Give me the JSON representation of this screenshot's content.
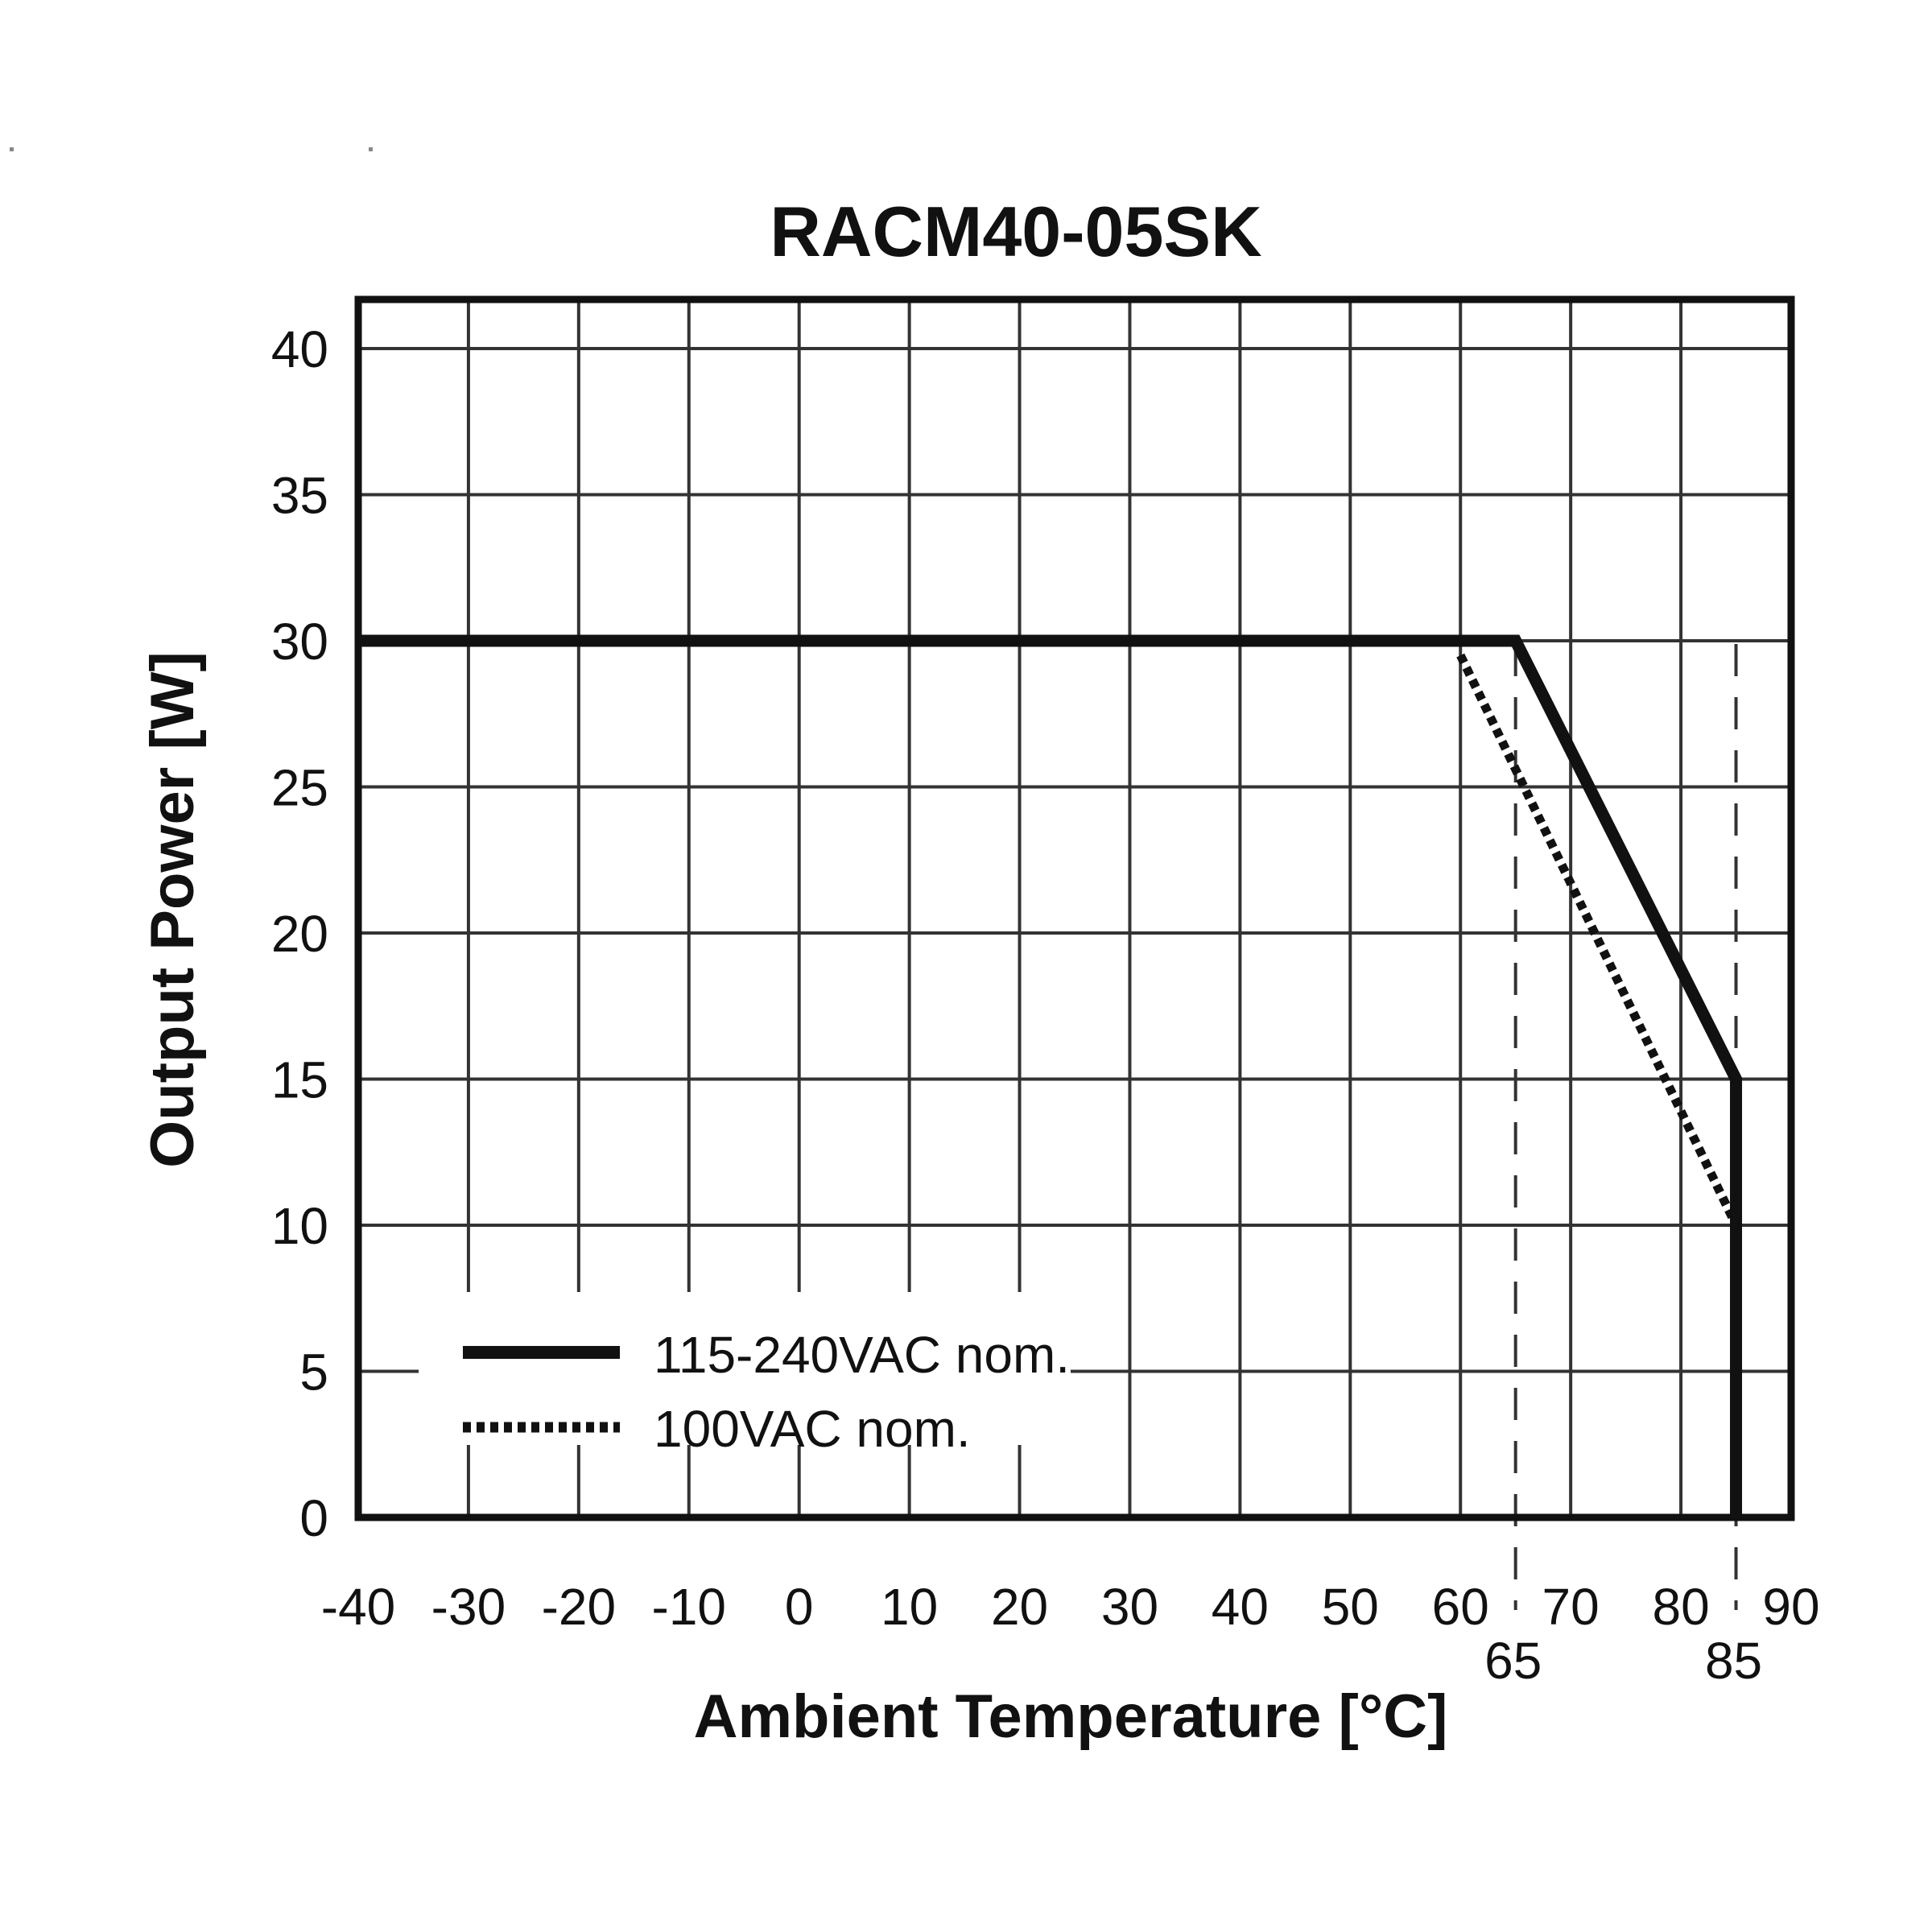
{
  "chart_data": {
    "type": "line",
    "title": "RACM40-05SK",
    "xlabel": "Ambient Temperature [°C]",
    "ylabel": "Output Power [W]",
    "xlim": [
      -40,
      90
    ],
    "ylim": [
      0,
      40
    ],
    "grid": true,
    "x_ticks": [
      -40,
      -30,
      -20,
      -10,
      0,
      10,
      20,
      30,
      40,
      50,
      60,
      70,
      80,
      90
    ],
    "x_extra_ticks": [
      65,
      85
    ],
    "y_ticks": [
      0,
      5,
      10,
      15,
      20,
      25,
      30,
      35,
      40
    ],
    "legend_position": "lower-left (inside plot)",
    "series": [
      {
        "name": "115-240VAC nom.",
        "style": "solid",
        "points": [
          [
            -40,
            30
          ],
          [
            65,
            30
          ],
          [
            85,
            15
          ],
          [
            85,
            0
          ]
        ]
      },
      {
        "name": "100VAC nom.",
        "style": "dotted",
        "points": [
          [
            60,
            29.5
          ],
          [
            85,
            10
          ],
          [
            85,
            0
          ]
        ]
      }
    ],
    "annotations": [
      {
        "type": "vertical-dashed-line",
        "x": 65
      },
      {
        "type": "vertical-dashed-line",
        "x": 85
      }
    ]
  },
  "labels": {
    "title": "RACM40-05SK",
    "xlabel": "Ambient Temperature [°C]",
    "ylabel": "Output Power [W]",
    "legend": [
      "115-240VAC nom.",
      "100VAC nom."
    ]
  },
  "colors": {
    "line": "#111111",
    "grid": "#333333",
    "background": "#ffffff"
  }
}
